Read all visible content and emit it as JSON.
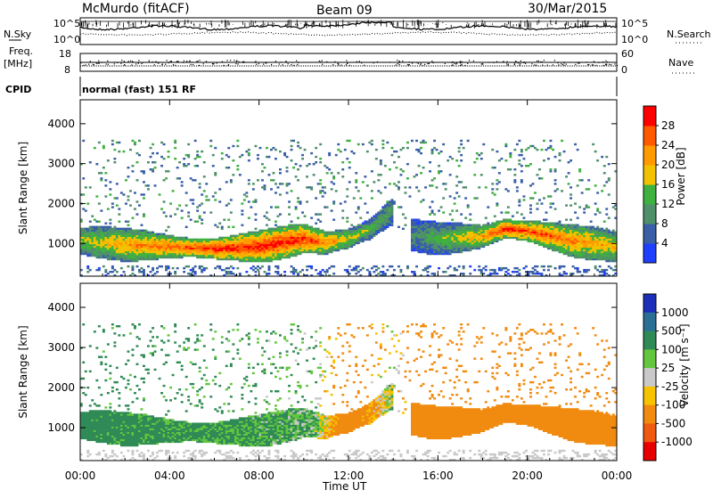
{
  "header": {
    "station": "McMurdo (fitACF)",
    "beam": "Beam 09",
    "date": "30/Mar/2015"
  },
  "top_panel": {
    "nsky_label": "N.Sky",
    "nsky_ticks": [
      "10^5",
      "10^0"
    ],
    "nsearch_label": "N.Search",
    "nsearch_ticks": [
      "10^5",
      "10^0"
    ],
    "freq_label_line1": "Freq.",
    "freq_label_line2": "[MHz]",
    "freq_ticks": [
      "18",
      "8"
    ],
    "nave_label": "Nave",
    "nave_ticks": [
      "60",
      "0"
    ],
    "cpid_label": "CPID",
    "cpid_value": "normal (fast) 151 RF"
  },
  "colors": {
    "power": [
      "#1f3fff",
      "#3a5fa6",
      "#4f8f6a",
      "#3fb13f",
      "#f2c200",
      "#ff9a00",
      "#ff5a00",
      "#ff0000"
    ],
    "velocity": [
      "#1c2fb8",
      "#2c6f95",
      "#2f8a56",
      "#63c63e",
      "#c9c9c9",
      "#f7c200",
      "#f18b10",
      "#f05a10",
      "#e80000"
    ]
  },
  "chart_data": [
    {
      "type": "heatmap",
      "quantity": "Power",
      "ylabel": "Slant Range [km]",
      "xlabel": "Time UT",
      "x_ticks": [
        "00:00",
        "04:00",
        "08:00",
        "12:00",
        "16:00",
        "20:00",
        "00:00"
      ],
      "y_ticks": [
        1000,
        2000,
        3000,
        4000
      ],
      "xlim": [
        0,
        24
      ],
      "ylim": [
        180,
        4600
      ],
      "colorbar": {
        "label": "Power [dB]",
        "ticks": [
          4,
          8,
          12,
          16,
          20,
          24,
          28
        ],
        "range": [
          0,
          32
        ]
      },
      "main_band_center_km": [
        [
          0.0,
          1050
        ],
        [
          2.0,
          950
        ],
        [
          4.0,
          900
        ],
        [
          6.0,
          850
        ],
        [
          8.0,
          900
        ],
        [
          10.0,
          1100
        ],
        [
          11.0,
          1000
        ],
        [
          12.0,
          1100
        ],
        [
          13.0,
          1350
        ],
        [
          14.0,
          1800
        ],
        [
          14.4,
          null
        ],
        [
          14.8,
          1200
        ],
        [
          16.0,
          1100
        ],
        [
          18.0,
          1150
        ],
        [
          19.0,
          1350
        ],
        [
          20.0,
          1300
        ],
        [
          22.0,
          1050
        ],
        [
          24.0,
          900
        ]
      ],
      "peak_power_db": [
        [
          0.0,
          16
        ],
        [
          2.0,
          22
        ],
        [
          4.0,
          26
        ],
        [
          6.0,
          30
        ],
        [
          8.0,
          30
        ],
        [
          10.0,
          30
        ],
        [
          11.5,
          22
        ],
        [
          13.0,
          14
        ],
        [
          15.0,
          10
        ],
        [
          18.0,
          22
        ],
        [
          19.0,
          30
        ],
        [
          20.0,
          28
        ],
        [
          22.0,
          24
        ],
        [
          24.0,
          20
        ]
      ]
    },
    {
      "type": "heatmap",
      "quantity": "Velocity",
      "ylabel": "Slant Range [km]",
      "xlabel": "Time UT",
      "x_ticks": [
        "00:00",
        "04:00",
        "08:00",
        "12:00",
        "16:00",
        "20:00",
        "00:00"
      ],
      "y_ticks": [
        1000,
        2000,
        3000,
        4000
      ],
      "xlim": [
        0,
        24
      ],
      "ylim": [
        180,
        4600
      ],
      "colorbar": {
        "label": "Velocity [m s⁻¹]",
        "ticks": [
          1000,
          500,
          100,
          25,
          -25,
          -100,
          -500,
          -1000
        ]
      },
      "main_band_velocity_ms": [
        [
          0.0,
          200
        ],
        [
          4.0,
          150
        ],
        [
          8.0,
          120
        ],
        [
          10.5,
          80
        ],
        [
          12.0,
          -300
        ],
        [
          14.0,
          40
        ],
        [
          15.0,
          -300
        ],
        [
          18.0,
          -350
        ],
        [
          22.0,
          -350
        ],
        [
          24.0,
          -300
        ]
      ]
    }
  ]
}
